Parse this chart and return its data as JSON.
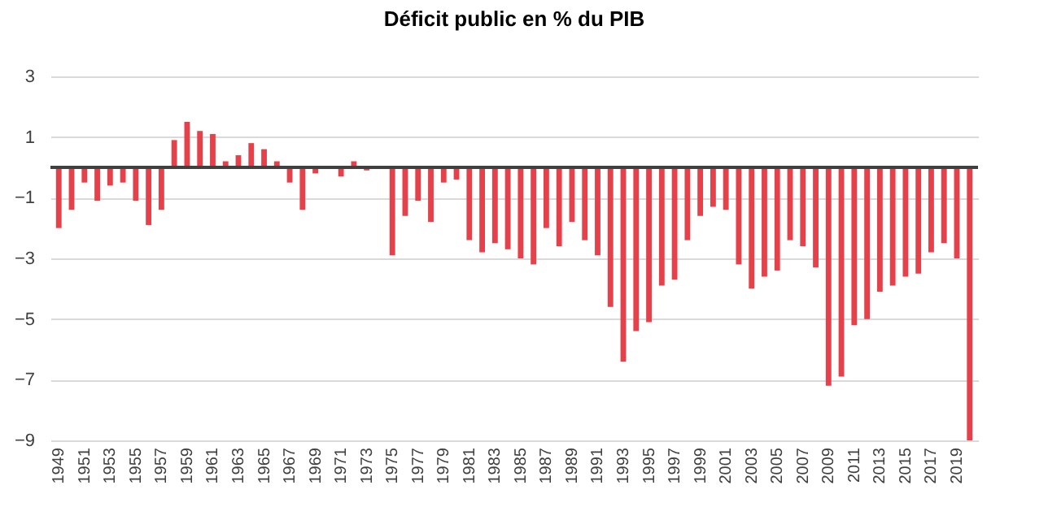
{
  "chart_data": {
    "type": "bar",
    "title": "Déficit public en % du PIB",
    "categories": [
      "1949",
      null,
      "1951",
      null,
      "1953",
      null,
      "1955",
      null,
      "1957",
      null,
      "1959",
      null,
      "1961",
      null,
      "1963",
      null,
      "1965",
      null,
      "1967",
      null,
      "1969",
      null,
      "1971",
      null,
      "1973",
      null,
      "1975",
      null,
      "1977",
      null,
      "1979",
      null,
      "1981",
      null,
      "1983",
      null,
      "1985",
      null,
      "1987",
      null,
      "1989",
      null,
      "1991",
      null,
      "1993",
      null,
      "1995",
      null,
      "1997",
      null,
      "1999",
      null,
      "2001",
      null,
      "2003",
      null,
      "2005",
      null,
      "2007",
      null,
      "2009",
      null,
      "2011",
      null,
      "2013",
      null,
      "2015",
      null,
      "2017",
      null,
      "2019",
      null
    ],
    "values": [
      -2.0,
      -1.4,
      -0.5,
      -1.1,
      -0.6,
      -0.5,
      -1.1,
      -1.9,
      -1.4,
      0.9,
      1.5,
      1.2,
      1.1,
      0.2,
      0.4,
      0.8,
      0.6,
      0.2,
      -0.5,
      -1.4,
      -0.2,
      0.0,
      -0.3,
      0.2,
      -0.1,
      0.0,
      -2.9,
      -1.6,
      -1.1,
      -1.8,
      -0.5,
      -0.4,
      -2.4,
      -2.8,
      -2.5,
      -2.7,
      -3.0,
      -3.2,
      -2.0,
      -2.6,
      -1.8,
      -2.4,
      -2.9,
      -4.6,
      -6.4,
      -5.4,
      -5.1,
      -3.9,
      -3.7,
      -2.4,
      -1.6,
      -1.3,
      -1.4,
      -3.2,
      -4.0,
      -3.6,
      -3.4,
      -2.4,
      -2.6,
      -3.3,
      -7.2,
      -6.9,
      -5.2,
      -5.0,
      -4.1,
      -3.9,
      -3.6,
      -3.5,
      -2.8,
      -2.5,
      -3.0,
      -9.0
    ],
    "color": "#e5414a",
    "ylim": [
      -9,
      3
    ],
    "yticks": [
      3,
      1,
      -1,
      -3,
      -5,
      -7,
      -9
    ],
    "grid": "y",
    "ref_lines": [
      {
        "axis": "y",
        "value": 0,
        "color": "#404040"
      }
    ]
  }
}
